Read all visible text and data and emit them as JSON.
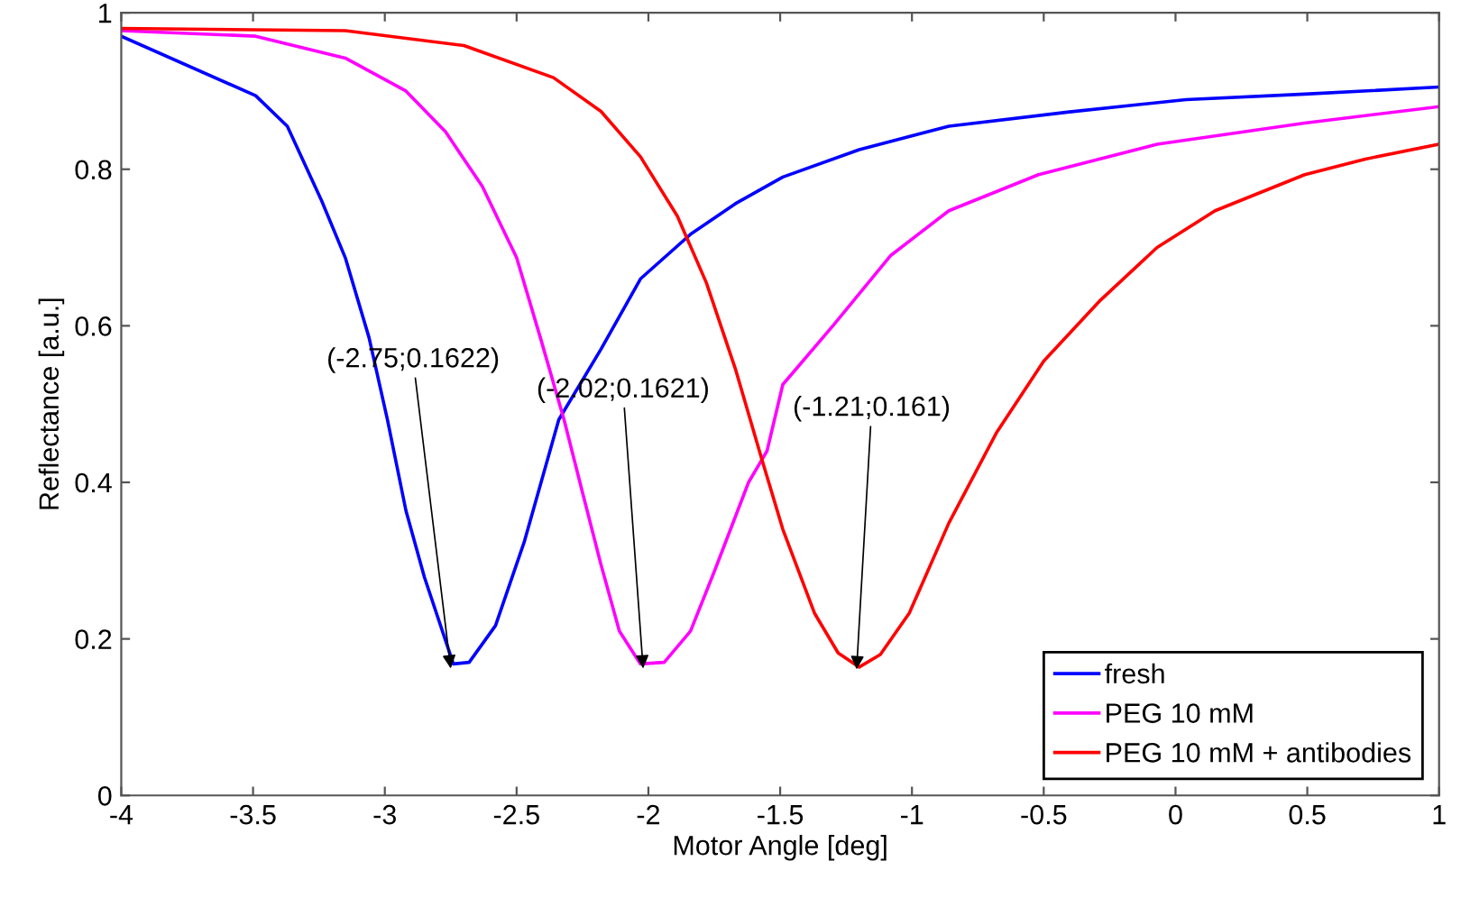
{
  "chart_data": {
    "type": "line",
    "xlabel": "Motor Angle [deg]",
    "ylabel": "Reflectance [a.u.]",
    "xlim": [
      -4,
      1
    ],
    "ylim": [
      0,
      1
    ],
    "xticks": [
      -4,
      -3.5,
      -3,
      -2.5,
      -2,
      -1.5,
      -1,
      -0.5,
      0,
      0.5,
      1
    ],
    "yticks": [
      0,
      0.2,
      0.4,
      0.6,
      0.8,
      1
    ],
    "grid": false,
    "legend": "bottom right",
    "line_style": "solid",
    "marker": "none",
    "series": [
      {
        "name": "fresh",
        "color": "#0000ff",
        "x": [
          -4,
          -3.49,
          -3.37,
          -3.24,
          -3.15,
          -3.06,
          -2.99,
          -2.92,
          -2.85,
          -2.74,
          -2.68,
          -2.58,
          -2.47,
          -2.34,
          -2.18,
          -2.03,
          -1.84,
          -1.67,
          -1.49,
          -1.2,
          -0.86,
          -0.41,
          0.04,
          0.49,
          1.0
        ],
        "values": [
          0.97,
          0.894,
          0.855,
          0.76,
          0.687,
          0.585,
          0.48,
          0.364,
          0.279,
          0.168,
          0.17,
          0.217,
          0.325,
          0.48,
          0.57,
          0.66,
          0.717,
          0.756,
          0.79,
          0.825,
          0.855,
          0.873,
          0.889,
          0.896,
          0.905
        ]
      },
      {
        "name": "PEG 10 mM",
        "color": "#ff00ff",
        "x": [
          -4,
          -3.49,
          -3.15,
          -2.92,
          -2.77,
          -2.63,
          -2.5,
          -2.41,
          -2.32,
          -2.25,
          -2.18,
          -2.11,
          -2.03,
          -1.94,
          -1.84,
          -1.75,
          -1.62,
          -1.55,
          -1.49,
          -1.3,
          -1.08,
          -0.86,
          -0.52,
          -0.07,
          0.49,
          1.0
        ],
        "values": [
          0.977,
          0.97,
          0.942,
          0.9,
          0.848,
          0.778,
          0.687,
          0.585,
          0.48,
          0.387,
          0.295,
          0.21,
          0.168,
          0.17,
          0.21,
          0.286,
          0.4,
          0.44,
          0.525,
          0.6,
          0.69,
          0.747,
          0.793,
          0.832,
          0.859,
          0.88
        ]
      },
      {
        "name": "PEG 10 mM + antibodies",
        "color": "#ff0000",
        "x": [
          -4,
          -3.15,
          -2.7,
          -2.36,
          -2.18,
          -2.03,
          -1.89,
          -1.78,
          -1.67,
          -1.57,
          -1.49,
          -1.37,
          -1.28,
          -1.2,
          -1.12,
          -1.01,
          -0.86,
          -0.68,
          -0.5,
          -0.29,
          -0.07,
          0.15,
          0.49,
          0.72,
          1.0
        ],
        "values": [
          0.98,
          0.977,
          0.958,
          0.917,
          0.874,
          0.816,
          0.74,
          0.655,
          0.545,
          0.43,
          0.34,
          0.233,
          0.182,
          0.164,
          0.18,
          0.233,
          0.348,
          0.463,
          0.555,
          0.631,
          0.7,
          0.747,
          0.793,
          0.813,
          0.832
        ]
      }
    ],
    "annotations": [
      {
        "text": "(-2.75;0.1622)",
        "x": -2.75,
        "y": 0.1622
      },
      {
        "text": "(-2.02;0.1621)",
        "x": -2.02,
        "y": 0.1621
      },
      {
        "text": "(-1.21;0.161)",
        "x": -1.21,
        "y": 0.161
      }
    ]
  }
}
